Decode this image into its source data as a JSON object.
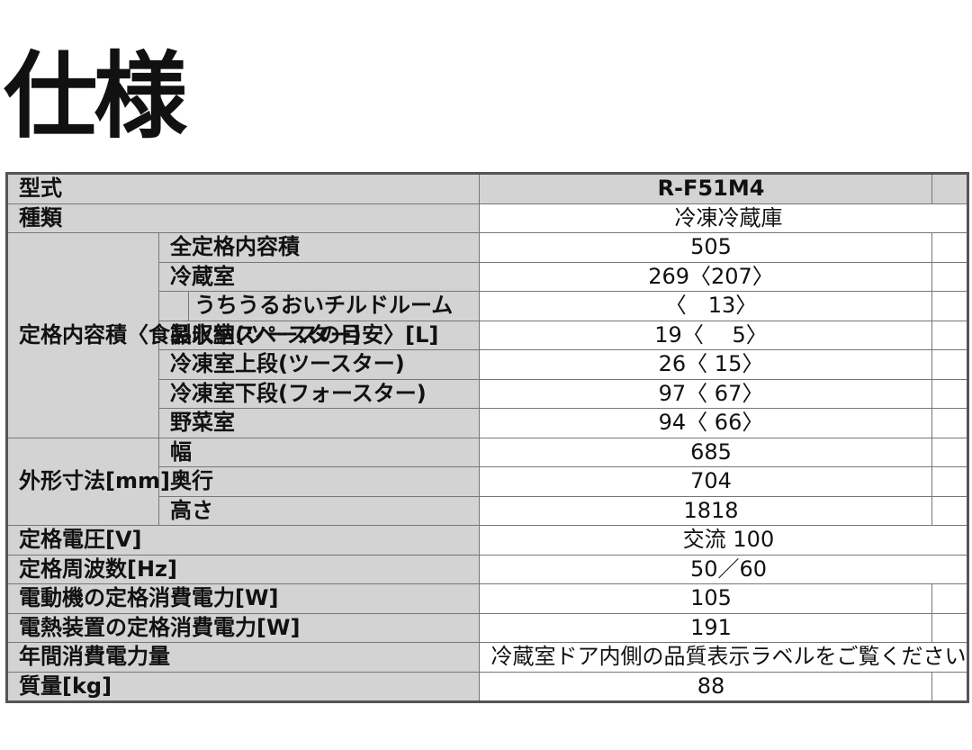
{
  "title": "仕様",
  "table": {
    "model_label": "型式",
    "models": [
      "R-F51M4",
      ""
    ],
    "type": {
      "label": "種類",
      "value": "冷凍冷蔵庫"
    },
    "capacity": {
      "group_label": "定格内容積〈食品収納スペースの目安〉[L]",
      "rows": [
        {
          "label": "全定格内容積",
          "value": "505"
        },
        {
          "label": "冷蔵室",
          "value": "269〈207〉"
        },
        {
          "label": "うちうるおいチルドルーム",
          "value": "〈　13〉",
          "sub": true
        },
        {
          "label": "製氷室(ツースター)",
          "value": "19〈　 5〉"
        },
        {
          "label": "冷凍室上段(ツースター)",
          "value": "26〈 15〉"
        },
        {
          "label": "冷凍室下段(フォースター)",
          "value": "97〈 67〉"
        },
        {
          "label": "野菜室",
          "value": "94〈 66〉"
        }
      ]
    },
    "dimensions": {
      "group_label": "外形寸法[mm]",
      "rows": [
        {
          "label": "幅",
          "value": "685"
        },
        {
          "label": "奥行",
          "value": "704"
        },
        {
          "label": "高さ",
          "value": "1818"
        }
      ]
    },
    "voltage": {
      "label": "定格電圧[V]",
      "value": "交流 100"
    },
    "frequency": {
      "label": "定格周波数[Hz]",
      "value": "50／60"
    },
    "motor_power": {
      "label": "電動機の定格消費電力[W]",
      "value": "105"
    },
    "heater_power": {
      "label": "電熱装置の定格消費電力[W]",
      "value": "191"
    },
    "annual_energy": {
      "label": "年間消費電力量",
      "value": "冷蔵室ドア内側の品質表示ラベルをご覧ください"
    },
    "mass": {
      "label": "質量[kg]",
      "value": "88"
    }
  }
}
